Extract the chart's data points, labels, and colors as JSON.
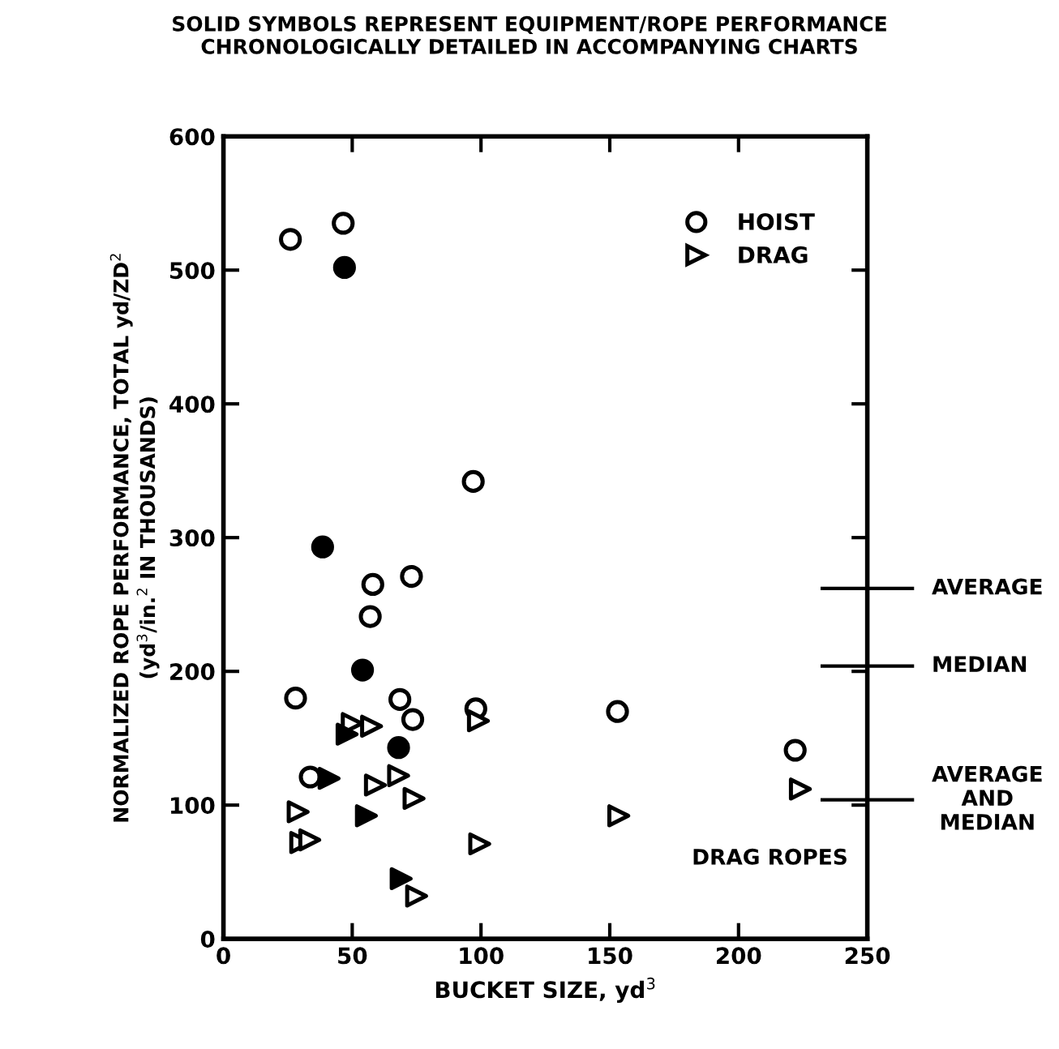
{
  "chart_data": {
    "type": "scatter",
    "title": "SOLID SYMBOLS REPRESENT EQUIPMENT/ROPE PERFORMANCE\nCHRONOLOGICALLY DETAILED IN ACCOMPANYING CHARTS",
    "xlabel": "BUCKET SIZE, yd$^{3}$",
    "ylabel": "NORMALIZED ROPE PERFORMANCE, TOTAL yd/ZD$^{2}$\n(yd$^{3}$/in.$^{2}$ IN THOUSANDS)",
    "xlim": [
      0,
      250
    ],
    "xticks": [
      0,
      50,
      100,
      150,
      200,
      250
    ],
    "ylim": [
      0,
      600
    ],
    "yticks": [
      0,
      100,
      200,
      300,
      400,
      500,
      600
    ],
    "grid": false,
    "legend": "top right",
    "series": [
      {
        "name": "HOIST",
        "color": "#ffffff",
        "marker": "circle",
        "x": [
          26,
          46.5,
          97,
          73,
          58,
          57,
          28,
          68.5,
          73.5,
          98,
          153,
          222,
          33.7
        ],
        "values": [
          523,
          535,
          342,
          271,
          265,
          241,
          180,
          179,
          164,
          172,
          170,
          141,
          121
        ]
      },
      {
        "color": "#000000",
        "marker": "circle",
        "x": [
          47,
          38.5,
          54,
          68
        ],
        "values": [
          502,
          293,
          201,
          143
        ]
      },
      {
        "name": "DRAG",
        "color": "#ffffff",
        "marker": "triangle",
        "x": [
          50,
          57.5,
          99,
          59,
          68,
          74,
          29,
          153.5,
          224,
          30,
          33.5,
          99.5,
          75
        ],
        "values": [
          161,
          159,
          163,
          115,
          122,
          105,
          95,
          92,
          112,
          72,
          74,
          71,
          32
        ]
      },
      {
        "color": "#000000",
        "marker": "triangle",
        "x": [
          48,
          41,
          55.5,
          69
        ],
        "values": [
          153,
          120,
          92,
          45
        ]
      }
    ],
    "ref_lines": [
      {
        "axis": "y",
        "value": 262,
        "label": "AVERAGE"
      },
      {
        "axis": "y",
        "value": 204,
        "label": "MEDIAN"
      },
      {
        "axis": "y",
        "value": 104,
        "label": "AVERAGE\nAND\nMEDIAN"
      }
    ],
    "annotations": [
      "DRAG ROPES"
    ]
  }
}
